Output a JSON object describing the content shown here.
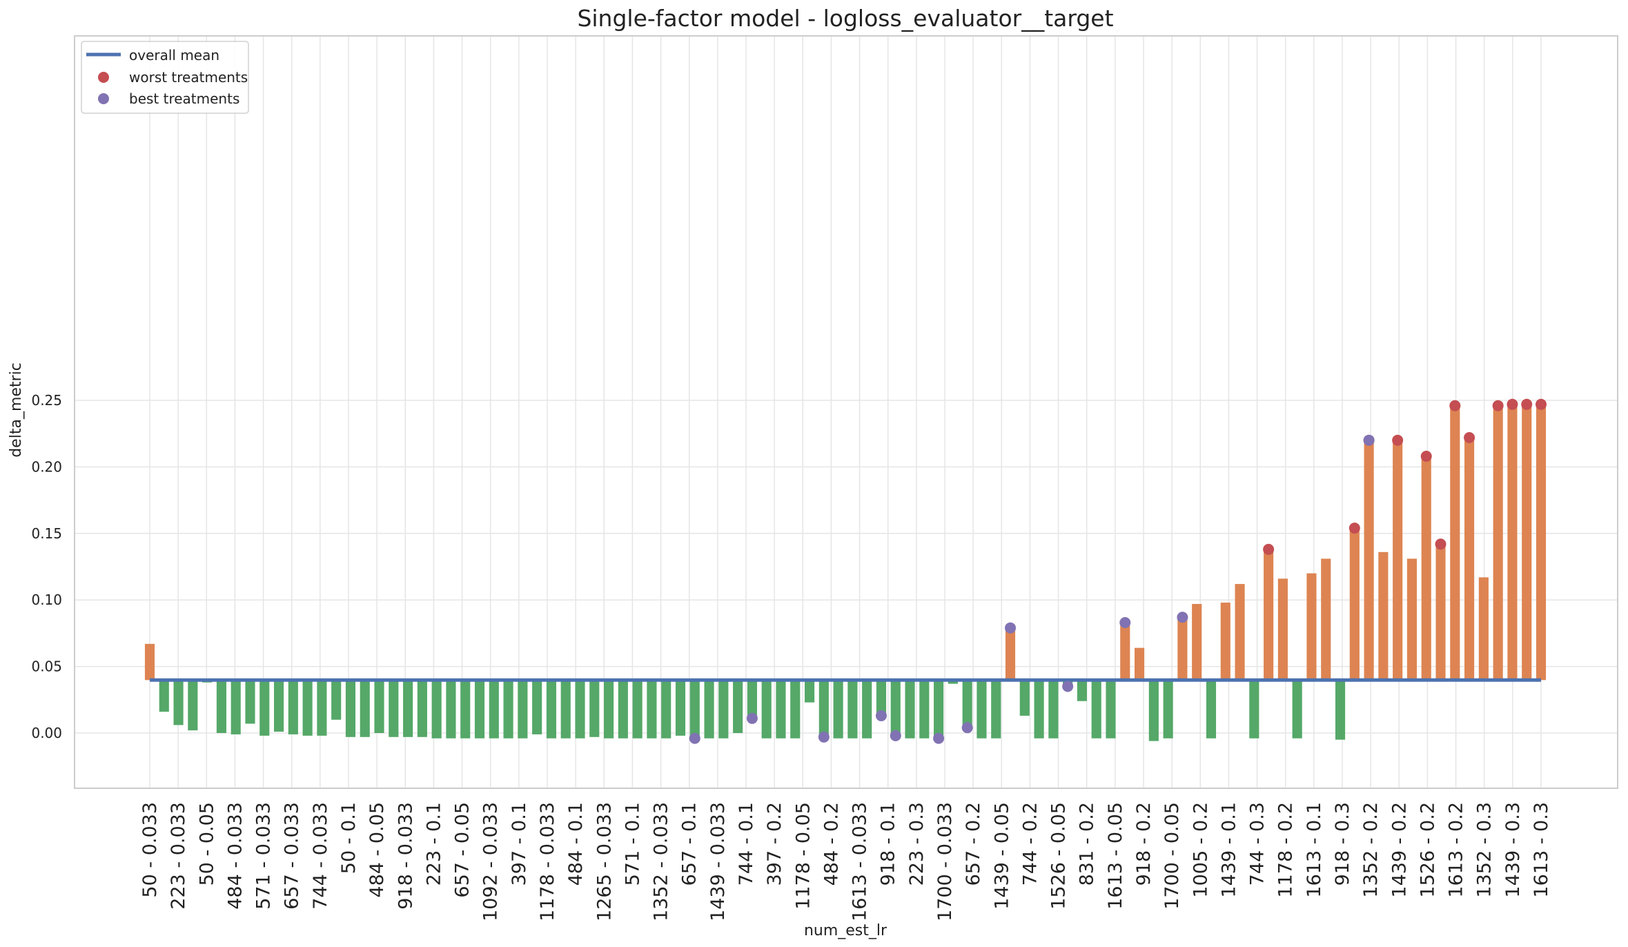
{
  "chart_data": {
    "type": "bar",
    "title": "Single-factor model - logloss_evaluator__target",
    "xlabel": "num_est_lr",
    "ylabel": "delta_metric",
    "ylim": [
      -0.022,
      0.262
    ],
    "yticks": [
      0.0,
      0.05,
      0.1,
      0.15,
      0.2,
      0.25
    ],
    "ytick_labels": [
      "0.00",
      "0.05",
      "0.10",
      "0.15",
      "0.20",
      "0.25"
    ],
    "grid": true,
    "legend_position": "top-left",
    "legend": [
      "overall mean",
      "worst treatments",
      "best treatments"
    ],
    "overall_mean": 0.0398,
    "x_tick_labels": [
      "50 - 0.033",
      "223 - 0.033",
      "50 - 0.05",
      "484 - 0.033",
      "571 - 0.033",
      "657 - 0.033",
      "744 - 0.033",
      "50 - 0.1",
      "484 - 0.05",
      "918 - 0.033",
      "223 - 0.1",
      "657 - 0.05",
      "1092 - 0.033",
      "397 - 0.1",
      "1178 - 0.033",
      "484 - 0.1",
      "1265 - 0.033",
      "571 - 0.1",
      "1352 - 0.033",
      "657 - 0.1",
      "1439 - 0.033",
      "744 - 0.1",
      "397 - 0.2",
      "1178 - 0.05",
      "484 - 0.2",
      "1613 - 0.033",
      "918 - 0.1",
      "223 - 0.3",
      "1700 - 0.033",
      "657 - 0.2",
      "1439 - 0.05",
      "744 - 0.2",
      "1526 - 0.05",
      "831 - 0.2",
      "1613 - 0.05",
      "918 - 0.2",
      "1700 - 0.05",
      "1005 - 0.2",
      "1439 - 0.1",
      "744 - 0.3",
      "1178 - 0.2",
      "1613 - 0.1",
      "918 - 0.3",
      "1352 - 0.2",
      "1439 - 0.2",
      "1526 - 0.2",
      "1613 - 0.2",
      "1352 - 0.3",
      "1439 - 0.3",
      "1613 - 0.3"
    ],
    "values": [
      0.067,
      0.016,
      0.006,
      0.002,
      0.038,
      0.0,
      -0.001,
      0.007,
      -0.002,
      0.001,
      -0.001,
      -0.002,
      -0.002,
      0.01,
      -0.003,
      -0.003,
      0.0,
      -0.003,
      -0.003,
      -0.003,
      -0.004,
      -0.004,
      -0.004,
      -0.004,
      -0.004,
      -0.004,
      -0.004,
      -0.001,
      -0.004,
      -0.004,
      -0.004,
      -0.003,
      -0.004,
      -0.004,
      -0.004,
      -0.004,
      -0.004,
      -0.002,
      -0.004,
      -0.004,
      -0.004,
      0.0,
      0.011,
      -0.004,
      -0.004,
      -0.004,
      0.023,
      -0.003,
      -0.004,
      -0.004,
      -0.004,
      0.013,
      -0.002,
      -0.004,
      -0.004,
      -0.004,
      0.037,
      0.004,
      -0.004,
      -0.004,
      0.079,
      0.013,
      -0.004,
      -0.004,
      0.035,
      0.024,
      -0.004,
      -0.004,
      0.083,
      0.064,
      -0.006,
      -0.004,
      0.087,
      0.097,
      -0.004,
      0.098,
      0.112,
      -0.004,
      0.138,
      0.116,
      -0.004,
      0.12,
      0.131,
      -0.005,
      0.154,
      0.22,
      0.136,
      0.22,
      0.131,
      0.208,
      0.142,
      0.246,
      0.222,
      0.117,
      0.246,
      0.247,
      0.247,
      0.247
    ],
    "worst_treatment_indices": [
      78,
      84,
      85,
      87,
      89,
      90,
      91,
      92,
      94,
      95,
      96,
      97
    ],
    "best_treatment_indices": [
      38,
      42,
      47,
      51,
      52,
      55,
      57,
      60,
      64,
      68,
      72,
      85
    ],
    "colors": {
      "positive_bar": "#dd8452",
      "negative_bar": "#55a868",
      "mean_line": "#4c72b0",
      "worst_marker": "#c44e52",
      "best_marker": "#8172b3",
      "grid": "#e5e5e5",
      "axes_edge": "#cccccc"
    }
  }
}
